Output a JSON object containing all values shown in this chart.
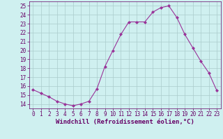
{
  "x": [
    0,
    1,
    2,
    3,
    4,
    5,
    6,
    7,
    8,
    9,
    10,
    11,
    12,
    13,
    14,
    15,
    16,
    17,
    18,
    19,
    20,
    21,
    22,
    23
  ],
  "y": [
    15.6,
    15.2,
    14.8,
    14.3,
    14.0,
    13.8,
    14.0,
    14.3,
    15.7,
    18.2,
    20.0,
    21.8,
    23.2,
    23.2,
    23.2,
    24.3,
    24.8,
    25.0,
    23.7,
    21.8,
    20.3,
    18.8,
    17.5,
    15.5
  ],
  "line_color": "#993399",
  "marker": "D",
  "markersize": 2,
  "linewidth": 0.8,
  "bg_color": "#cff0f0",
  "grid_color": "#aacccc",
  "xlabel": "Windchill (Refroidissement éolien,°C)",
  "xlabel_color": "#660066",
  "xlim": [
    -0.5,
    23.5
  ],
  "ylim": [
    13.5,
    25.5
  ],
  "yticks": [
    14,
    15,
    16,
    17,
    18,
    19,
    20,
    21,
    22,
    23,
    24,
    25
  ],
  "xticks": [
    0,
    1,
    2,
    3,
    4,
    5,
    6,
    7,
    8,
    9,
    10,
    11,
    12,
    13,
    14,
    15,
    16,
    17,
    18,
    19,
    20,
    21,
    22,
    23
  ],
  "tick_color": "#660066",
  "tick_fontsize": 5.5,
  "xlabel_fontsize": 6.5,
  "spine_color": "#660066"
}
